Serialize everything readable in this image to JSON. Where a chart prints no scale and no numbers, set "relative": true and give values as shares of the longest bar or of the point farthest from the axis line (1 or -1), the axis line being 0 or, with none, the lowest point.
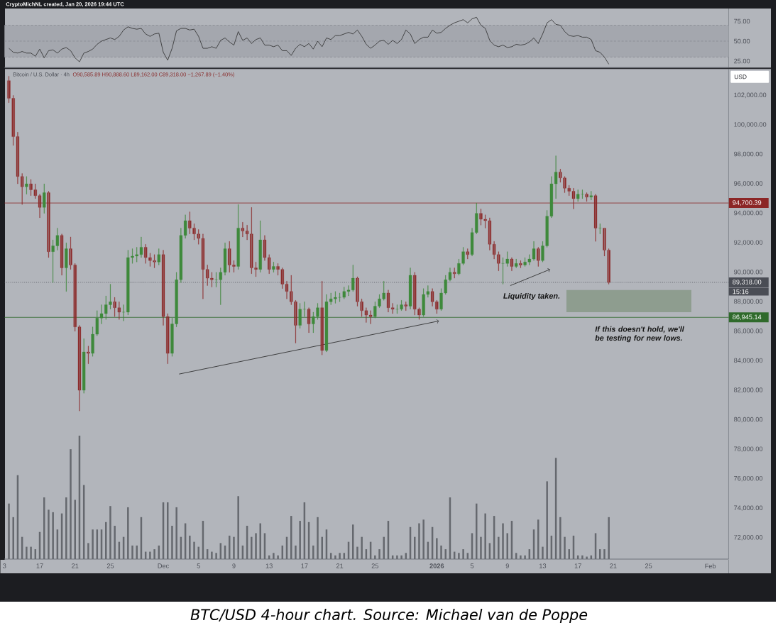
{
  "chart_data": [
    {
      "type": "line",
      "color": "#2b2b2b",
      "xlim": [
        "2025-11-13T00:00",
        "2026-02-03T02:00"
      ],
      "ylim": [
        17,
        91
      ],
      "yticks": [
        {
          "value": 25,
          "label": "25.00"
        },
        {
          "value": 50,
          "label": "50.00"
        },
        {
          "value": 75,
          "label": "75.00"
        }
      ],
      "tick_labels": "y",
      "bands": [
        {
          "axis": "y",
          "from": 30,
          "to": 70,
          "color": "#a4a7ae"
        }
      ],
      "ref_lines": [
        {
          "axis": "y",
          "value": 70,
          "line_style": "dashed",
          "color": "#868990"
        },
        {
          "axis": "y",
          "value": 50,
          "line_style": "dashed",
          "color": "#868990"
        },
        {
          "axis": "y",
          "value": 30,
          "line_style": "dashed",
          "color": "#868990"
        }
      ],
      "x": [
        "2025-11-13T12:00",
        "2025-11-14",
        "2025-11-14T12:00",
        "2025-11-15",
        "2025-11-15T12:00",
        "2025-11-16",
        "2025-11-16T12:00",
        "2025-11-17",
        "2025-11-17T12:00",
        "2025-11-18",
        "2025-11-18T12:00",
        "2025-11-19",
        "2025-11-19T12:00",
        "2025-11-20",
        "2025-11-20T12:00",
        "2025-11-21",
        "2025-11-21T12:00",
        "2025-11-22",
        "2025-11-22T12:00",
        "2025-11-23",
        "2025-11-23T12:00",
        "2025-11-24",
        "2025-11-24T12:00",
        "2025-11-25",
        "2025-11-25T12:00",
        "2025-11-26",
        "2025-11-26T12:00",
        "2025-11-27",
        "2025-11-27T12:00",
        "2025-11-28",
        "2025-11-28T12:00",
        "2025-11-29",
        "2025-11-29T12:00",
        "2025-11-30",
        "2025-11-30T12:00",
        "2025-12-01",
        "2025-12-01T12:00",
        "2025-12-02",
        "2025-12-02T12:00",
        "2025-12-03",
        "2025-12-03T12:00",
        "2025-12-04",
        "2025-12-04T12:00",
        "2025-12-05",
        "2025-12-05T12:00",
        "2025-12-06",
        "2025-12-06T12:00",
        "2025-12-07",
        "2025-12-07T12:00",
        "2025-12-08",
        "2025-12-08T12:00",
        "2025-12-09",
        "2025-12-09T12:00",
        "2025-12-10",
        "2025-12-10T12:00",
        "2025-12-11",
        "2025-12-11T12:00",
        "2025-12-12",
        "2025-12-12T12:00",
        "2025-12-13",
        "2025-12-13T12:00",
        "2025-12-14",
        "2025-12-14T12:00",
        "2025-12-15",
        "2025-12-15T12:00",
        "2025-12-16",
        "2025-12-16T12:00",
        "2025-12-17",
        "2025-12-17T12:00",
        "2025-12-18",
        "2025-12-18T12:00",
        "2025-12-19",
        "2025-12-19T12:00",
        "2025-12-20",
        "2025-12-20T12:00",
        "2025-12-21",
        "2025-12-21T12:00",
        "2025-12-22",
        "2025-12-22T12:00",
        "2025-12-23",
        "2025-12-23T12:00",
        "2025-12-24",
        "2025-12-24T12:00",
        "2025-12-25",
        "2025-12-25T12:00",
        "2025-12-26",
        "2025-12-26T12:00",
        "2025-12-27",
        "2025-12-27T12:00",
        "2025-12-28",
        "2025-12-28T12:00",
        "2025-12-29",
        "2025-12-29T12:00",
        "2025-12-30",
        "2025-12-30T12:00",
        "2025-12-31",
        "2025-12-31T12:00",
        "2026-01-01",
        "2026-01-01T12:00",
        "2026-01-02",
        "2026-01-02T12:00",
        "2026-01-03",
        "2026-01-03T12:00",
        "2026-01-04",
        "2026-01-04T12:00",
        "2026-01-05",
        "2026-01-05T12:00",
        "2026-01-06",
        "2026-01-06T12:00",
        "2026-01-07",
        "2026-01-07T12:00",
        "2026-01-08",
        "2026-01-08T12:00",
        "2026-01-09",
        "2026-01-09T12:00",
        "2026-01-10",
        "2026-01-10T12:00",
        "2026-01-11",
        "2026-01-11T12:00",
        "2026-01-12",
        "2026-01-12T12:00",
        "2026-01-13",
        "2026-01-13T12:00",
        "2026-01-14",
        "2026-01-14T12:00",
        "2026-01-15",
        "2026-01-15T12:00",
        "2026-01-16",
        "2026-01-16T12:00",
        "2026-01-17",
        "2026-01-17T12:00",
        "2026-01-18",
        "2026-01-18T12:00",
        "2026-01-19",
        "2026-01-19T12:00",
        "2026-01-20",
        "2026-01-20T12:00"
      ],
      "values": [
        41,
        36,
        35,
        37,
        35,
        35,
        31,
        40,
        29,
        38,
        39,
        35,
        40,
        42,
        38,
        29,
        24,
        35,
        37,
        40,
        46,
        50,
        52,
        54,
        52,
        56,
        64,
        68,
        66,
        65,
        66,
        59,
        56,
        59,
        60,
        36,
        26,
        41,
        63,
        66,
        66,
        64,
        65,
        56,
        41,
        41,
        43,
        41,
        51,
        54,
        49,
        45,
        62,
        51,
        54,
        47,
        52,
        54,
        45,
        45,
        43,
        45,
        38,
        38,
        32,
        41,
        46,
        43,
        47,
        40,
        50,
        43,
        54,
        52,
        57,
        57,
        59,
        61,
        59,
        64,
        56,
        46,
        41,
        45,
        50,
        51,
        46,
        51,
        47,
        52,
        64,
        59,
        47,
        52,
        55,
        55,
        64,
        60,
        61,
        66,
        70,
        73,
        75,
        77,
        73,
        78,
        80,
        70,
        66,
        51,
        45,
        43,
        45,
        42,
        43,
        46,
        45,
        46,
        49,
        54,
        47,
        59,
        73,
        77,
        71,
        70,
        62,
        57,
        56,
        57,
        55,
        55,
        52,
        38,
        36,
        30,
        21
      ]
    },
    {
      "type": "candlestick",
      "title": "Bitcoin / U.S. Dollar · 4h",
      "subtitle": "O90,585.89 H90,888.60 L89,162.00 C89,318.00 −1,267.89 (−1.40%)",
      "xlim": [
        "2025-11-13T00:00",
        "2026-02-03T02:00"
      ],
      "ylim": [
        70550,
        103800
      ],
      "xticks": [
        {
          "value": "2025-11-13",
          "label": "3"
        },
        {
          "value": "2025-11-17",
          "label": "17"
        },
        {
          "value": "2025-11-21",
          "label": "21"
        },
        {
          "value": "2025-11-25",
          "label": "25"
        },
        {
          "value": "2025-12-01",
          "label": "Dec"
        },
        {
          "value": "2025-12-05",
          "label": "5"
        },
        {
          "value": "2025-12-09",
          "label": "9"
        },
        {
          "value": "2025-12-13",
          "label": "13"
        },
        {
          "value": "2025-12-17",
          "label": "17"
        },
        {
          "value": "2025-12-21",
          "label": "21"
        },
        {
          "value": "2025-12-25",
          "label": "25"
        },
        {
          "value": "2026-01-01",
          "label": "**2026**"
        },
        {
          "value": "2026-01-05",
          "label": "5"
        },
        {
          "value": "2026-01-09",
          "label": "9"
        },
        {
          "value": "2026-01-13",
          "label": "13"
        },
        {
          "value": "2026-01-17",
          "label": "17"
        },
        {
          "value": "2026-01-21",
          "label": "21"
        },
        {
          "value": "2026-01-25",
          "label": "25"
        },
        {
          "value": "2026-02-01",
          "label": "Feb"
        }
      ],
      "yticks": [
        {
          "value": 72000,
          "label": "72,000.00"
        },
        {
          "value": 74000,
          "label": "74,000.00"
        },
        {
          "value": 76000,
          "label": "76,000.00"
        },
        {
          "value": 78000,
          "label": "78,000.00"
        },
        {
          "value": 80000,
          "label": "80,000.00"
        },
        {
          "value": 82000,
          "label": "82,000.00"
        },
        {
          "value": 84000,
          "label": "84,000.00"
        },
        {
          "value": 86000,
          "label": "86,000.00"
        },
        {
          "value": 88000,
          "label": "88,000.00"
        },
        {
          "value": 90000,
          "label": "90,000.00"
        },
        {
          "value": 92000,
          "label": "92,000.00"
        },
        {
          "value": 94000,
          "label": "94,000.00"
        },
        {
          "value": 96000,
          "label": "96,000.00"
        },
        {
          "value": 98000,
          "label": "98,000.00"
        },
        {
          "value": 100000,
          "label": "100,000.00"
        },
        {
          "value": 102000,
          "label": "102,000.00"
        }
      ],
      "ref_lines": [
        {
          "axis": "y",
          "value": 94700.39,
          "label": "94,700.39",
          "color": "#8c2626"
        },
        {
          "axis": "y",
          "value": 89318,
          "label": "89,318.00",
          "color": "#4a4d55",
          "line_style": "dotted"
        },
        {
          "axis": "y",
          "value": 86945.14,
          "label": "86,945.14",
          "color": "#2f6a2b"
        }
      ],
      "bands": [
        {
          "axis": "y",
          "from": 87300,
          "to": 88800,
          "color": "#8e9d8f"
        }
      ],
      "series": [
        {
          "type": "line",
          "x": [
            "2025-12-02T19:00",
            "2026-01-01T06:00"
          ],
          "values": [
            83100,
            86700
          ],
          "color": "#1f1f1f"
        },
        {
          "type": "line",
          "x": [
            "2026-01-09T08:00",
            "2026-01-13T20:00"
          ],
          "values": [
            89100,
            90200
          ],
          "color": "#1f1f1f"
        }
      ],
      "annotations": [
        "CryptoMichNL created, Jan 20, 2026 19:44 UTC",
        "USD",
        "15:16",
        "Liquidity taken.",
        "If this doesn't hold, we'll be testing for new lows.",
        "BTC/USD 4-hour chart. Source: Michael van de Poppe"
      ],
      "x": [
        "2025-11-13T12:00",
        "2025-11-14",
        "2025-11-14T12:00",
        "2025-11-15",
        "2025-11-15T12:00",
        "2025-11-16",
        "2025-11-16T12:00",
        "2025-11-17",
        "2025-11-17T12:00",
        "2025-11-18",
        "2025-11-18T12:00",
        "2025-11-19",
        "2025-11-19T12:00",
        "2025-11-20",
        "2025-11-20T12:00",
        "2025-11-21",
        "2025-11-21T12:00",
        "2025-11-22",
        "2025-11-22T12:00",
        "2025-11-23",
        "2025-11-23T12:00",
        "2025-11-24",
        "2025-11-24T12:00",
        "2025-11-25",
        "2025-11-25T12:00",
        "2025-11-26",
        "2025-11-26T12:00",
        "2025-11-27",
        "2025-11-27T12:00",
        "2025-11-28",
        "2025-11-28T12:00",
        "2025-11-29",
        "2025-11-29T12:00",
        "2025-11-30",
        "2025-11-30T12:00",
        "2025-12-01",
        "2025-12-01T12:00",
        "2025-12-02",
        "2025-12-02T12:00",
        "2025-12-03",
        "2025-12-03T12:00",
        "2025-12-04",
        "2025-12-04T12:00",
        "2025-12-05",
        "2025-12-05T12:00",
        "2025-12-06",
        "2025-12-06T12:00",
        "2025-12-07",
        "2025-12-07T12:00",
        "2025-12-08",
        "2025-12-08T12:00",
        "2025-12-09",
        "2025-12-09T12:00",
        "2025-12-10",
        "2025-12-10T12:00",
        "2025-12-11",
        "2025-12-11T12:00",
        "2025-12-12",
        "2025-12-12T12:00",
        "2025-12-13",
        "2025-12-13T12:00",
        "2025-12-14",
        "2025-12-14T12:00",
        "2025-12-15",
        "2025-12-15T12:00",
        "2025-12-16",
        "2025-12-16T12:00",
        "2025-12-17",
        "2025-12-17T12:00",
        "2025-12-18",
        "2025-12-18T12:00",
        "2025-12-19",
        "2025-12-19T12:00",
        "2025-12-20",
        "2025-12-20T12:00",
        "2025-12-21",
        "2025-12-21T12:00",
        "2025-12-22",
        "2025-12-22T12:00",
        "2025-12-23",
        "2025-12-23T12:00",
        "2025-12-24",
        "2025-12-24T12:00",
        "2025-12-25",
        "2025-12-25T12:00",
        "2025-12-26",
        "2025-12-26T12:00",
        "2025-12-27",
        "2025-12-27T12:00",
        "2025-12-28",
        "2025-12-28T12:00",
        "2025-12-29",
        "2025-12-29T12:00",
        "2025-12-30",
        "2025-12-30T12:00",
        "2025-12-31",
        "2025-12-31T12:00",
        "2026-01-01",
        "2026-01-01T12:00",
        "2026-01-02",
        "2026-01-02T12:00",
        "2026-01-03",
        "2026-01-03T12:00",
        "2026-01-04",
        "2026-01-04T12:00",
        "2026-01-05",
        "2026-01-05T12:00",
        "2026-01-06",
        "2026-01-06T12:00",
        "2026-01-07",
        "2026-01-07T12:00",
        "2026-01-08",
        "2026-01-08T12:00",
        "2026-01-09",
        "2026-01-09T12:00",
        "2026-01-10",
        "2026-01-10T12:00",
        "2026-01-11",
        "2026-01-11T12:00",
        "2026-01-12",
        "2026-01-12T12:00",
        "2026-01-13",
        "2026-01-13T12:00",
        "2026-01-14",
        "2026-01-14T12:00",
        "2026-01-15",
        "2026-01-15T12:00",
        "2026-01-16",
        "2026-01-16T12:00",
        "2026-01-17",
        "2026-01-17T12:00",
        "2026-01-18",
        "2026-01-18T12:00",
        "2026-01-19",
        "2026-01-19T12:00",
        "2026-01-20",
        "2026-01-20T12:00"
      ],
      "ohlc": [
        [
          103000,
          103300,
          101500,
          101800
        ],
        [
          101800,
          102000,
          98600,
          99200
        ],
        [
          99200,
          99500,
          96000,
          96500
        ],
        [
          96500,
          96700,
          94600,
          95800
        ],
        [
          95800,
          96500,
          95300,
          96000
        ],
        [
          96000,
          96300,
          95200,
          95600
        ],
        [
          95600,
          96000,
          95000,
          95200
        ],
        [
          95200,
          95300,
          93700,
          94400
        ],
        [
          94400,
          96000,
          94000,
          95400
        ],
        [
          95400,
          95500,
          91000,
          91400
        ],
        [
          91400,
          92200,
          89300,
          91800
        ],
        [
          91800,
          93000,
          91500,
          92500
        ],
        [
          92500,
          92600,
          89800,
          90300
        ],
        [
          90300,
          92000,
          88700,
          91600
        ],
        [
          91600,
          92400,
          90200,
          90500
        ],
        [
          90500,
          90600,
          86000,
          86300
        ],
        [
          86300,
          86400,
          80600,
          82000
        ],
        [
          82000,
          85500,
          81800,
          84600
        ],
        [
          84600,
          85000,
          83800,
          84500
        ],
        [
          84500,
          86300,
          84300,
          85800
        ],
        [
          85800,
          87400,
          85700,
          86900
        ],
        [
          86900,
          87800,
          86500,
          87200
        ],
        [
          87200,
          88400,
          86800,
          87800
        ],
        [
          87800,
          89200,
          87500,
          88000
        ],
        [
          88000,
          88300,
          87000,
          87600
        ],
        [
          87600,
          88000,
          86800,
          87300
        ],
        [
          87300,
          87800,
          86700,
          87300
        ],
        [
          87300,
          91500,
          87100,
          91000
        ],
        [
          91000,
          91600,
          90600,
          91100
        ],
        [
          91100,
          91700,
          90700,
          91200
        ],
        [
          91200,
          92400,
          91000,
          91700
        ],
        [
          91700,
          91900,
          90600,
          91000
        ],
        [
          91000,
          91300,
          90400,
          90800
        ],
        [
          90800,
          91200,
          90300,
          90700
        ],
        [
          90700,
          91600,
          90500,
          91200
        ],
        [
          91200,
          91500,
          86400,
          87000
        ],
        [
          87000,
          87200,
          83800,
          84500
        ],
        [
          84500,
          86900,
          84300,
          86500
        ],
        [
          86500,
          90000,
          86300,
          89500
        ],
        [
          89500,
          93000,
          89300,
          92500
        ],
        [
          92500,
          93900,
          92300,
          93500
        ],
        [
          93500,
          94100,
          92600,
          93000
        ],
        [
          93000,
          93300,
          92200,
          92600
        ],
        [
          92600,
          92900,
          91900,
          92300
        ],
        [
          92300,
          92600,
          88200,
          90200
        ],
        [
          90200,
          90500,
          89100,
          89600
        ],
        [
          89600,
          90000,
          89000,
          89500
        ],
        [
          89500,
          90000,
          89000,
          89500
        ],
        [
          89500,
          90300,
          87800,
          90000
        ],
        [
          90000,
          92000,
          89800,
          91600
        ],
        [
          91600,
          92100,
          90000,
          90500
        ],
        [
          90500,
          90800,
          90000,
          90400
        ],
        [
          90400,
          94600,
          90200,
          93000
        ],
        [
          93000,
          93400,
          92400,
          92800
        ],
        [
          92800,
          93200,
          92200,
          92600
        ],
        [
          92600,
          94400,
          89900,
          90300
        ],
        [
          90300,
          90700,
          89700,
          90200
        ],
        [
          90200,
          93500,
          90000,
          92200
        ],
        [
          92200,
          92500,
          90800,
          91000
        ],
        [
          91000,
          91200,
          89900,
          90200
        ],
        [
          90200,
          90700,
          90000,
          90400
        ],
        [
          90400,
          90600,
          89800,
          90200
        ],
        [
          90200,
          90300,
          88900,
          89200
        ],
        [
          89200,
          89400,
          88200,
          88700
        ],
        [
          88700,
          89800,
          87800,
          88000
        ],
        [
          88000,
          88100,
          85200,
          86400
        ],
        [
          86400,
          87900,
          86200,
          87500
        ],
        [
          87500,
          88000,
          87000,
          87500
        ],
        [
          87500,
          87600,
          85900,
          86500
        ],
        [
          86500,
          87300,
          85900,
          87000
        ],
        [
          87000,
          87900,
          86800,
          87600
        ],
        [
          87600,
          89400,
          84400,
          84700
        ],
        [
          84700,
          88500,
          84600,
          88000
        ],
        [
          88000,
          88600,
          87800,
          88200
        ],
        [
          88200,
          88700,
          87900,
          88300
        ],
        [
          88300,
          88600,
          88000,
          88300
        ],
        [
          88300,
          89000,
          88200,
          88700
        ],
        [
          88700,
          89100,
          88400,
          88800
        ],
        [
          88800,
          90500,
          88700,
          89600
        ],
        [
          89600,
          89700,
          87700,
          88000
        ],
        [
          88000,
          88200,
          87000,
          87400
        ],
        [
          87400,
          87600,
          86600,
          87100
        ],
        [
          87100,
          87400,
          86500,
          87000
        ],
        [
          87000,
          88000,
          86900,
          87700
        ],
        [
          87700,
          88500,
          87600,
          88200
        ],
        [
          88200,
          89400,
          88100,
          88600
        ],
        [
          88600,
          88800,
          87300,
          87600
        ],
        [
          87600,
          87900,
          87200,
          87500
        ],
        [
          87500,
          87800,
          87200,
          87500
        ],
        [
          87500,
          88100,
          87400,
          87800
        ],
        [
          87800,
          88000,
          87400,
          87700
        ],
        [
          87700,
          90300,
          87500,
          89800
        ],
        [
          89800,
          90000,
          87100,
          87500
        ],
        [
          87500,
          87600,
          86800,
          87100
        ],
        [
          87100,
          88900,
          87000,
          88500
        ],
        [
          88500,
          89100,
          88300,
          88700
        ],
        [
          88700,
          88900,
          87700,
          88000
        ],
        [
          88000,
          88100,
          87200,
          87500
        ],
        [
          87500,
          88900,
          87400,
          88600
        ],
        [
          88600,
          89800,
          88500,
          89500
        ],
        [
          89500,
          90300,
          89400,
          90000
        ],
        [
          90000,
          90300,
          89600,
          89900
        ],
        [
          89900,
          90900,
          89800,
          90600
        ],
        [
          90600,
          91700,
          90500,
          91400
        ],
        [
          91400,
          91600,
          90900,
          91200
        ],
        [
          91200,
          93000,
          91100,
          92700
        ],
        [
          92700,
          94700,
          92600,
          94000
        ],
        [
          94000,
          94300,
          93200,
          93600
        ],
        [
          93600,
          93900,
          93000,
          93500
        ],
        [
          93500,
          93700,
          91500,
          91900
        ],
        [
          91900,
          92100,
          90900,
          91200
        ],
        [
          91200,
          91400,
          90100,
          90600
        ],
        [
          90600,
          91000,
          89200,
          90600
        ],
        [
          90600,
          91400,
          90400,
          90900
        ],
        [
          90900,
          91000,
          90100,
          90400
        ],
        [
          90400,
          90900,
          90300,
          90600
        ],
        [
          90600,
          90800,
          90300,
          90500
        ],
        [
          90500,
          91000,
          90400,
          90700
        ],
        [
          90700,
          91200,
          90500,
          90900
        ],
        [
          90900,
          92100,
          90800,
          91600
        ],
        [
          91600,
          91700,
          90400,
          90800
        ],
        [
          90800,
          92100,
          90700,
          91800
        ],
        [
          91800,
          94200,
          91700,
          93800
        ],
        [
          93800,
          96500,
          93700,
          96000
        ],
        [
          96000,
          97900,
          95000,
          96800
        ],
        [
          96800,
          97000,
          96100,
          96400
        ],
        [
          96400,
          96500,
          95400,
          95700
        ],
        [
          95700,
          95900,
          95200,
          95500
        ],
        [
          95500,
          95700,
          94300,
          95000
        ],
        [
          95000,
          95600,
          94800,
          95300
        ],
        [
          95300,
          95600,
          95000,
          95300
        ],
        [
          95300,
          95400,
          94800,
          95100
        ],
        [
          95100,
          95500,
          94900,
          95200
        ],
        [
          95200,
          95300,
          92100,
          93000
        ],
        [
          93000,
          93300,
          92600,
          93000
        ],
        [
          93000,
          93000,
          91100,
          91500
        ],
        [
          91500,
          91600,
          89200,
          89318
        ]
      ],
      "colors": [
        "#8c2b2b",
        "#8c2b2b",
        "#8c2b2b",
        "#8c2b2b",
        "#3f8a3c",
        "#8c2b2b",
        "#8c2b2b",
        "#8c2b2b",
        "#3f8a3c",
        "#8c2b2b",
        "#3f8a3c",
        "#3f8a3c",
        "#8c2b2b",
        "#3f8a3c",
        "#8c2b2b",
        "#8c2b2b",
        "#8c2b2b",
        "#3f8a3c",
        "#8c2b2b",
        "#3f8a3c",
        "#3f8a3c",
        "#3f8a3c",
        "#3f8a3c",
        "#3f8a3c",
        "#8c2b2b",
        "#8c2b2b",
        "#3f8a3c",
        "#3f8a3c",
        "#3f8a3c",
        "#3f8a3c",
        "#3f8a3c",
        "#8c2b2b",
        "#8c2b2b",
        "#8c2b2b",
        "#3f8a3c",
        "#8c2b2b",
        "#8c2b2b",
        "#3f8a3c",
        "#3f8a3c",
        "#3f8a3c",
        "#3f8a3c",
        "#8c2b2b",
        "#8c2b2b",
        "#8c2b2b",
        "#8c2b2b",
        "#8c2b2b",
        "#8c2b2b",
        "#3f8a3c",
        "#3f8a3c",
        "#3f8a3c",
        "#8c2b2b",
        "#8c2b2b",
        "#3f8a3c",
        "#8c2b2b",
        "#8c2b2b",
        "#8c2b2b",
        "#8c2b2b",
        "#3f8a3c",
        "#8c2b2b",
        "#8c2b2b",
        "#3f8a3c",
        "#8c2b2b",
        "#8c2b2b",
        "#8c2b2b",
        "#8c2b2b",
        "#8c2b2b",
        "#3f8a3c",
        "#3f8a3c",
        "#8c2b2b",
        "#3f8a3c",
        "#3f8a3c",
        "#8c2b2b",
        "#3f8a3c",
        "#3f8a3c",
        "#3f8a3c",
        "#3f8a3c",
        "#3f8a3c",
        "#3f8a3c",
        "#3f8a3c",
        "#8c2b2b",
        "#8c2b2b",
        "#8c2b2b",
        "#8c2b2b",
        "#3f8a3c",
        "#3f8a3c",
        "#3f8a3c",
        "#8c2b2b",
        "#8c2b2b",
        "#3f8a3c",
        "#3f8a3c",
        "#8c2b2b",
        "#3f8a3c",
        "#8c2b2b",
        "#8c2b2b",
        "#3f8a3c",
        "#3f8a3c",
        "#8c2b2b",
        "#8c2b2b",
        "#3f8a3c",
        "#3f8a3c",
        "#3f8a3c",
        "#8c2b2b",
        "#3f8a3c",
        "#3f8a3c",
        "#8c2b2b",
        "#3f8a3c",
        "#3f8a3c",
        "#8c2b2b",
        "#8c2b2b",
        "#8c2b2b",
        "#8c2b2b",
        "#8c2b2b",
        "#3f8a3c",
        "#3f8a3c",
        "#8c2b2b",
        "#3f8a3c",
        "#8c2b2b",
        "#3f8a3c",
        "#3f8a3c",
        "#3f8a3c",
        "#8c2b2b",
        "#3f8a3c",
        "#3f8a3c",
        "#3f8a3c",
        "#3f8a3c",
        "#8c2b2b",
        "#8c2b2b",
        "#8c2b2b",
        "#8c2b2b",
        "#3f8a3c",
        "#3f8a3c",
        "#8c2b2b",
        "#3f8a3c",
        "#8c2b2b",
        "#3f8a3c",
        "#8c2b2b",
        "#8c2b2b"
      ]
    },
    {
      "type": "bar",
      "relative": true,
      "color": "#65686e",
      "xlim": [
        "2025-11-13T00:00",
        "2026-02-03T02:00"
      ],
      "tick_labels": false,
      "x": [
        "2025-11-13T12:00",
        "2025-11-14",
        "2025-11-14T12:00",
        "2025-11-15",
        "2025-11-15T12:00",
        "2025-11-16",
        "2025-11-16T12:00",
        "2025-11-17",
        "2025-11-17T12:00",
        "2025-11-18",
        "2025-11-18T12:00",
        "2025-11-19",
        "2025-11-19T12:00",
        "2025-11-20",
        "2025-11-20T12:00",
        "2025-11-21",
        "2025-11-21T12:00",
        "2025-11-22",
        "2025-11-22T12:00",
        "2025-11-23",
        "2025-11-23T12:00",
        "2025-11-24",
        "2025-11-24T12:00",
        "2025-11-25",
        "2025-11-25T12:00",
        "2025-11-26",
        "2025-11-26T12:00",
        "2025-11-27",
        "2025-11-27T12:00",
        "2025-11-28",
        "2025-11-28T12:00",
        "2025-11-29",
        "2025-11-29T12:00",
        "2025-11-30",
        "2025-11-30T12:00",
        "2025-12-01",
        "2025-12-01T12:00",
        "2025-12-02",
        "2025-12-02T12:00",
        "2025-12-03",
        "2025-12-03T12:00",
        "2025-12-04",
        "2025-12-04T12:00",
        "2025-12-05",
        "2025-12-05T12:00",
        "2025-12-06",
        "2025-12-06T12:00",
        "2025-12-07",
        "2025-12-07T12:00",
        "2025-12-08",
        "2025-12-08T12:00",
        "2025-12-09",
        "2025-12-09T12:00",
        "2025-12-10",
        "2025-12-10T12:00",
        "2025-12-11",
        "2025-12-11T12:00",
        "2025-12-12",
        "2025-12-12T12:00",
        "2025-12-13",
        "2025-12-13T12:00",
        "2025-12-14",
        "2025-12-14T12:00",
        "2025-12-15",
        "2025-12-15T12:00",
        "2025-12-16",
        "2025-12-16T12:00",
        "2025-12-17",
        "2025-12-17T12:00",
        "2025-12-18",
        "2025-12-18T12:00",
        "2025-12-19",
        "2025-12-19T12:00",
        "2025-12-20",
        "2025-12-20T12:00",
        "2025-12-21",
        "2025-12-21T12:00",
        "2025-12-22",
        "2025-12-22T12:00",
        "2025-12-23",
        "2025-12-23T12:00",
        "2025-12-24",
        "2025-12-24T12:00",
        "2025-12-25",
        "2025-12-25T12:00",
        "2025-12-26",
        "2025-12-26T12:00",
        "2025-12-27",
        "2025-12-27T12:00",
        "2025-12-28",
        "2025-12-28T12:00",
        "2025-12-29",
        "2025-12-29T12:00",
        "2025-12-30",
        "2025-12-30T12:00",
        "2025-12-31",
        "2025-12-31T12:00",
        "2026-01-01",
        "2026-01-01T12:00",
        "2026-01-02",
        "2026-01-02T12:00",
        "2026-01-03",
        "2026-01-03T12:00",
        "2026-01-04",
        "2026-01-04T12:00",
        "2026-01-05",
        "2026-01-05T12:00",
        "2026-01-06",
        "2026-01-06T12:00",
        "2026-01-07",
        "2026-01-07T12:00",
        "2026-01-08",
        "2026-01-08T12:00",
        "2026-01-09",
        "2026-01-09T12:00",
        "2026-01-10",
        "2026-01-10T12:00",
        "2026-01-11",
        "2026-01-11T12:00",
        "2026-01-12",
        "2026-01-12T12:00",
        "2026-01-13",
        "2026-01-13T12:00",
        "2026-01-14",
        "2026-01-14T12:00",
        "2026-01-15",
        "2026-01-15T12:00",
        "2026-01-16",
        "2026-01-16T12:00",
        "2026-01-17",
        "2026-01-17T12:00",
        "2026-01-18",
        "2026-01-18T12:00",
        "2026-01-19",
        "2026-01-19T12:00",
        "2026-01-20",
        "2026-01-20T12:00"
      ],
      "values": [
        0.45,
        0.34,
        0.68,
        0.18,
        0.1,
        0.1,
        0.08,
        0.22,
        0.5,
        0.4,
        0.38,
        0.24,
        0.37,
        0.5,
        0.89,
        0.48,
        1,
        0.6,
        0.13,
        0.24,
        0.24,
        0.24,
        0.3,
        0.43,
        0.27,
        0.14,
        0.18,
        0.42,
        0.11,
        0.11,
        0.34,
        0.06,
        0.06,
        0.08,
        0.11,
        0.46,
        0.46,
        0.27,
        0.42,
        0.18,
        0.29,
        0.19,
        0.14,
        0.1,
        0.31,
        0.08,
        0.06,
        0.05,
        0.13,
        0.11,
        0.19,
        0.18,
        0.51,
        0.11,
        0.27,
        0.18,
        0.21,
        0.29,
        0.21,
        0.03,
        0.05,
        0.03,
        0.11,
        0.18,
        0.35,
        0.11,
        0.31,
        0.46,
        0.3,
        0.11,
        0.34,
        0.18,
        0.24,
        0.05,
        0.03,
        0.05,
        0.05,
        0.14,
        0.28,
        0.1,
        0.18,
        0.08,
        0.14,
        0.03,
        0.08,
        0.18,
        0.31,
        0.03,
        0.03,
        0.03,
        0.05,
        0.26,
        0.18,
        0.29,
        0.32,
        0.14,
        0.26,
        0.17,
        0.11,
        0.08,
        0.5,
        0.06,
        0.05,
        0.08,
        0.05,
        0.21,
        0.45,
        0.18,
        0.37,
        0.13,
        0.35,
        0.18,
        0.29,
        0.21,
        0.31,
        0.05,
        0.03,
        0.03,
        0.08,
        0.24,
        0.32,
        0.1,
        0.63,
        0.19,
        0.82,
        0.34,
        0.18,
        0.08,
        0.19,
        0.03,
        0.03,
        0.02,
        0.03,
        0.21,
        0.08,
        0.08,
        0.34
      ]
    }
  ]
}
